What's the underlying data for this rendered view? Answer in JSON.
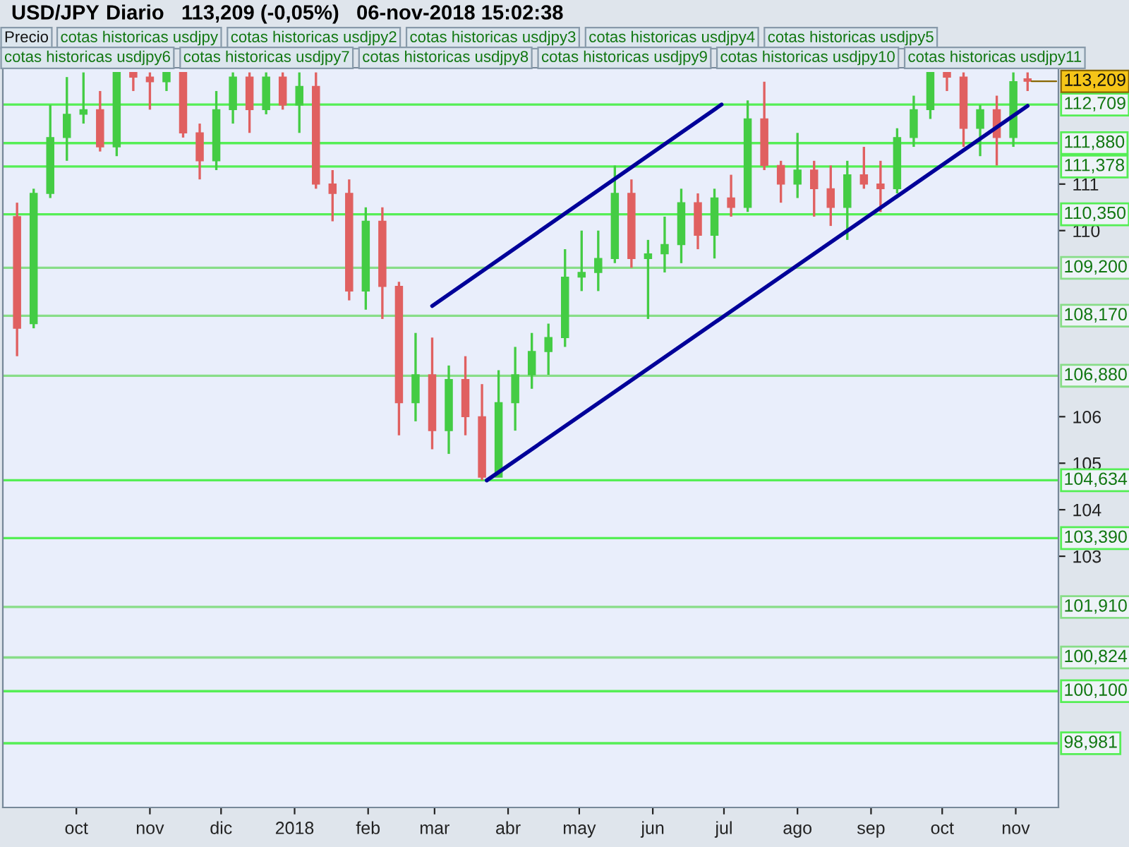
{
  "chart_data": {
    "type": "candlestick",
    "title": "USD/JPY",
    "subtitle": "Diario   113,209 (-0,05%)   06-nov-2018 15:02:38",
    "x": [
      "2017-09-06",
      "2017-09-13",
      "2017-09-20",
      "2017-09-27",
      "2017-10-04",
      "2017-10-11",
      "2017-10-18",
      "2017-10-25",
      "2017-11-01",
      "2017-11-08",
      "2017-11-15",
      "2017-11-22",
      "2017-11-29",
      "2017-12-06",
      "2017-12-13",
      "2017-12-20",
      "2017-12-27",
      "2018-01-03",
      "2018-01-10",
      "2018-01-17",
      "2018-01-24",
      "2018-01-31",
      "2018-02-07",
      "2018-02-14",
      "2018-02-21",
      "2018-02-28",
      "2018-03-07",
      "2018-03-14",
      "2018-03-21",
      "2018-03-28",
      "2018-04-04",
      "2018-04-11",
      "2018-04-18",
      "2018-04-25",
      "2018-05-02",
      "2018-05-09",
      "2018-05-16",
      "2018-05-23",
      "2018-05-30",
      "2018-06-06",
      "2018-06-13",
      "2018-06-20",
      "2018-06-27",
      "2018-07-04",
      "2018-07-11",
      "2018-07-18",
      "2018-07-25",
      "2018-08-01",
      "2018-08-08",
      "2018-08-15",
      "2018-08-22",
      "2018-08-29",
      "2018-09-05",
      "2018-09-12",
      "2018-09-19",
      "2018-09-26",
      "2018-10-03",
      "2018-10-10",
      "2018-10-17",
      "2018-10-24",
      "2018-10-31",
      "2018-11-06"
    ],
    "ohlc": [
      [
        110.3,
        110.6,
        107.3,
        107.9
      ],
      [
        108.0,
        110.9,
        107.9,
        110.8
      ],
      [
        110.8,
        112.7,
        110.7,
        112.0
      ],
      [
        112.0,
        113.3,
        111.5,
        112.5
      ],
      [
        112.5,
        113.4,
        112.3,
        112.6
      ],
      [
        112.6,
        113.0,
        111.7,
        111.8
      ],
      [
        111.8,
        113.4,
        111.6,
        113.4
      ],
      [
        113.4,
        113.4,
        113.0,
        113.3
      ],
      [
        113.3,
        113.4,
        112.6,
        113.2
      ],
      [
        113.2,
        113.4,
        113.0,
        113.4
      ],
      [
        113.4,
        113.4,
        112.0,
        112.1
      ],
      [
        112.1,
        112.3,
        111.1,
        111.5
      ],
      [
        111.5,
        113.0,
        111.3,
        112.6
      ],
      [
        112.6,
        113.4,
        112.3,
        113.3
      ],
      [
        113.3,
        113.4,
        112.1,
        112.6
      ],
      [
        112.6,
        113.4,
        112.5,
        113.3
      ],
      [
        113.3,
        113.4,
        112.6,
        112.7
      ],
      [
        112.7,
        113.4,
        112.1,
        113.1
      ],
      [
        113.1,
        113.4,
        110.9,
        111.0
      ],
      [
        111.0,
        111.3,
        110.2,
        110.8
      ],
      [
        110.8,
        111.1,
        108.5,
        108.7
      ],
      [
        108.7,
        110.5,
        108.3,
        110.2
      ],
      [
        110.2,
        110.5,
        108.1,
        108.8
      ],
      [
        108.8,
        108.9,
        105.6,
        106.3
      ],
      [
        106.3,
        107.8,
        105.9,
        106.9
      ],
      [
        106.9,
        107.7,
        105.3,
        105.7
      ],
      [
        105.7,
        107.1,
        105.2,
        106.8
      ],
      [
        106.8,
        107.3,
        105.6,
        106.0
      ],
      [
        106.0,
        106.7,
        104.634,
        104.7
      ],
      [
        104.7,
        107.0,
        104.7,
        106.3
      ],
      [
        106.3,
        107.5,
        105.7,
        106.9
      ],
      [
        106.9,
        107.8,
        106.6,
        107.4
      ],
      [
        107.4,
        108.0,
        106.9,
        107.7
      ],
      [
        107.7,
        109.6,
        107.5,
        109.0
      ],
      [
        109.0,
        110.0,
        108.7,
        109.1
      ],
      [
        109.1,
        110.0,
        108.7,
        109.4
      ],
      [
        109.4,
        111.4,
        109.3,
        110.8
      ],
      [
        110.8,
        111.1,
        109.2,
        109.4
      ],
      [
        109.4,
        109.8,
        108.1,
        109.5
      ],
      [
        109.5,
        110.3,
        109.1,
        109.7
      ],
      [
        109.7,
        110.9,
        109.3,
        110.6
      ],
      [
        110.6,
        110.8,
        109.6,
        109.9
      ],
      [
        109.9,
        110.9,
        109.4,
        110.7
      ],
      [
        110.7,
        111.2,
        110.3,
        110.5
      ],
      [
        110.5,
        112.8,
        110.4,
        112.4
      ],
      [
        112.4,
        113.2,
        111.3,
        111.4
      ],
      [
        111.4,
        111.5,
        110.6,
        111.0
      ],
      [
        111.0,
        112.1,
        110.7,
        111.3
      ],
      [
        111.3,
        111.5,
        110.3,
        110.9
      ],
      [
        110.9,
        111.4,
        110.1,
        110.5
      ],
      [
        110.5,
        111.5,
        109.8,
        111.2
      ],
      [
        111.2,
        111.8,
        110.9,
        111.0
      ],
      [
        111.0,
        111.5,
        110.4,
        110.9
      ],
      [
        110.9,
        112.2,
        110.8,
        112.0
      ],
      [
        112.0,
        112.9,
        111.8,
        112.6
      ],
      [
        112.6,
        113.4,
        112.4,
        113.4
      ],
      [
        113.4,
        113.4,
        113.0,
        113.3
      ],
      [
        113.3,
        113.4,
        111.8,
        112.2
      ],
      [
        112.2,
        112.7,
        111.6,
        112.6
      ],
      [
        112.6,
        112.9,
        111.4,
        112.0
      ],
      [
        112.0,
        113.4,
        111.8,
        113.2
      ],
      [
        113.26,
        113.4,
        113.0,
        113.209
      ]
    ],
    "colors": [
      "#e06060",
      "#44cc44",
      "#44cc44",
      "#44cc44",
      "#44cc44",
      "#e06060",
      "#44cc44",
      "#e06060",
      "#e06060",
      "#44cc44",
      "#e06060",
      "#e06060",
      "#44cc44",
      "#44cc44",
      "#e06060",
      "#44cc44",
      "#e06060",
      "#44cc44",
      "#e06060",
      "#e06060",
      "#e06060",
      "#44cc44",
      "#e06060",
      "#e06060",
      "#44cc44",
      "#e06060",
      "#44cc44",
      "#e06060",
      "#e06060",
      "#44cc44",
      "#44cc44",
      "#44cc44",
      "#44cc44",
      "#44cc44",
      "#44cc44",
      "#44cc44",
      "#44cc44",
      "#e06060",
      "#44cc44",
      "#44cc44",
      "#44cc44",
      "#e06060",
      "#44cc44",
      "#e06060",
      "#44cc44",
      "#e06060",
      "#e06060",
      "#44cc44",
      "#e06060",
      "#e06060",
      "#44cc44",
      "#e06060",
      "#e06060",
      "#44cc44",
      "#44cc44",
      "#44cc44",
      "#e06060",
      "#e06060",
      "#44cc44",
      "#e06060",
      "#44cc44",
      "#e06060"
    ],
    "series": [
      {
        "type": "line",
        "color": "#000099",
        "x": [
          "2018-03-23",
          "2018-11-06"
        ],
        "values": [
          104.63,
          112.68
        ]
      },
      {
        "type": "line",
        "color": "#000099",
        "x": [
          "2018-02-28",
          "2018-06-30"
        ],
        "values": [
          108.38,
          112.71
        ]
      }
    ],
    "ref_lines": [
      {
        "axis": "y",
        "value": 112.709,
        "label": "112,709",
        "color": "#55ee55"
      },
      {
        "axis": "y",
        "value": 111.88,
        "label": "111,880",
        "color": "#55ee55"
      },
      {
        "axis": "y",
        "value": 111.378,
        "label": "111,378",
        "color": "#55ee55"
      },
      {
        "axis": "y",
        "value": 110.35,
        "label": "110,350",
        "color": "#55ee55"
      },
      {
        "axis": "y",
        "value": 109.2,
        "label": "109,200",
        "color": "#88dd88"
      },
      {
        "axis": "y",
        "value": 108.17,
        "label": "108,170",
        "color": "#88dd88"
      },
      {
        "axis": "y",
        "value": 106.88,
        "label": "106,880",
        "color": "#88dd88"
      },
      {
        "axis": "y",
        "value": 104.634,
        "label": "104,634",
        "color": "#55ee55"
      },
      {
        "axis": "y",
        "value": 103.39,
        "label": "103,390",
        "color": "#55ee55"
      },
      {
        "axis": "y",
        "value": 101.91,
        "label": "101,910",
        "color": "#88dd88"
      },
      {
        "axis": "y",
        "value": 100.824,
        "label": "100,824",
        "color": "#88dd88"
      },
      {
        "axis": "y",
        "value": 100.1,
        "label": "100,100",
        "color": "#55ee55"
      },
      {
        "axis": "y",
        "value": 98.981,
        "label": "98,981",
        "color": "#55ee55"
      }
    ],
    "annotations": [
      "Precio",
      "cotas historicas usdjpy",
      "cotas historicas usdjpy2",
      "cotas historicas usdjpy3",
      "cotas historicas usdjpy4",
      "cotas historicas usdjpy5",
      "cotas historicas usdjpy6",
      "cotas historicas usdjpy7",
      "cotas historicas usdjpy8",
      "cotas historicas usdjpy9",
      "cotas historicas usdjpy10",
      "cotas historicas usdjpy11",
      {
        "text": "113,209",
        "x": "2018-11-06",
        "y": 113.209
      }
    ],
    "xlim": [
      "2017-08-31",
      "2018-11-19"
    ],
    "xticks": [
      {
        "value": "2017-10-01",
        "label": "oct"
      },
      {
        "value": "2017-11-01",
        "label": "nov"
      },
      {
        "value": "2017-12-01",
        "label": "dic"
      },
      {
        "value": "2018-01-01",
        "label": "2018"
      },
      {
        "value": "2018-02-01",
        "label": "feb"
      },
      {
        "value": "2018-03-01",
        "label": "mar"
      },
      {
        "value": "2018-04-01",
        "label": "abr"
      },
      {
        "value": "2018-05-01",
        "label": "may"
      },
      {
        "value": "2018-06-01",
        "label": "jun"
      },
      {
        "value": "2018-07-01",
        "label": "jul"
      },
      {
        "value": "2018-08-01",
        "label": "ago"
      },
      {
        "value": "2018-09-01",
        "label": "sep"
      },
      {
        "value": "2018-10-01",
        "label": "oct"
      },
      {
        "value": "2018-11-01",
        "label": "nov"
      }
    ],
    "ylim": [
      97.6,
      113.5
    ],
    "yticks": [
      103,
      104,
      105,
      106,
      110,
      111
    ],
    "grid": false
  }
}
